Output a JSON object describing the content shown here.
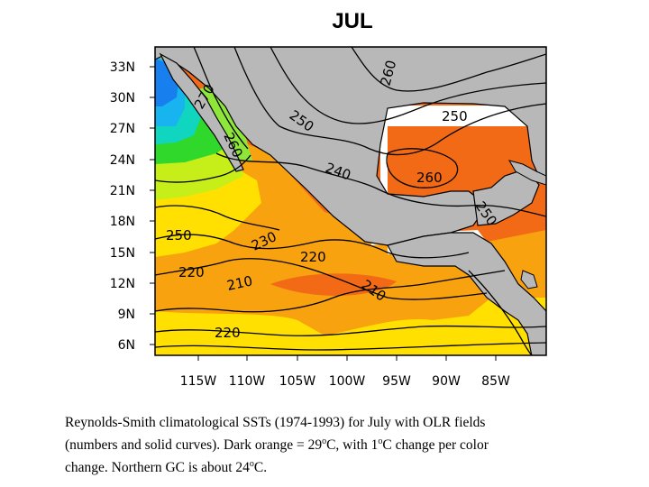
{
  "title": "JUL",
  "map": {
    "lat_labels": [
      "33N",
      "30N",
      "27N",
      "24N",
      "21N",
      "18N",
      "15N",
      "12N",
      "9N",
      "6N"
    ],
    "lon_labels": [
      "115W",
      "110W",
      "105W",
      "100W",
      "95W",
      "90W",
      "85W"
    ],
    "olr_contour_labels": [
      "260",
      "270",
      "260",
      "250",
      "250",
      "240",
      "260",
      "250",
      "250",
      "230",
      "220",
      "220",
      "210",
      "210",
      "220"
    ],
    "colors": {
      "land": "#b8b8b8",
      "coast": "#000000",
      "sst_dark_orange": "#f26a16",
      "sst_orange": "#f7a20e",
      "sst_yellow": "#ffe000",
      "sst_yellow_green": "#c6ef1a",
      "sst_green": "#2fd82a",
      "sst_cyan": "#10d6c0",
      "sst_sky": "#18b4f0",
      "sst_blue": "#1880ee",
      "missing_data": "#ffffff"
    }
  },
  "caption": {
    "line1": "Reynolds-Smith climatological SSTs (1974-1993) for July with OLR fields",
    "line2_a": "(numbers and solid curves).  Dark orange = 29",
    "degree1": "o",
    "line2_b": "C, with 1",
    "degree2": "o",
    "line2_c": "C change per color",
    "line3_a": "change.  Northern GC is about 24",
    "degree3": "o",
    "line3_b": "C."
  }
}
